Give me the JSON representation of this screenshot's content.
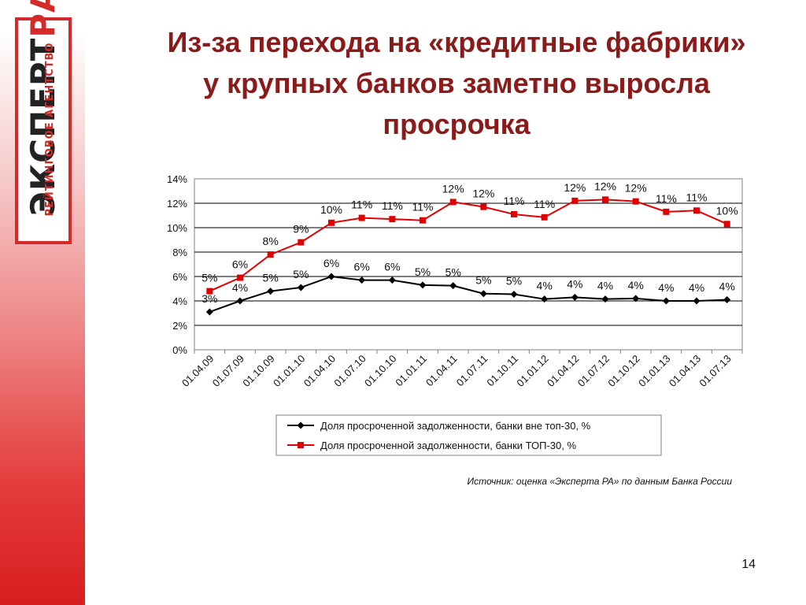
{
  "logo": {
    "main_dark": "ЭКСПЕРТ",
    "main_red": "РА",
    "sub": "РЕЙТИНГОВОЕ АГЕНТСТВО"
  },
  "title": {
    "line1": "Из-за перехода на «кредитные фабрики»",
    "line2": "у крупных банков заметно выросла",
    "line3": "просрочка"
  },
  "colors": {
    "title": "#8b1a1a",
    "series_black": "#000000",
    "series_red": "#e00000",
    "brand_red": "#d42a2a"
  },
  "chart_data": {
    "type": "line",
    "categories": [
      "01.04.09",
      "01.07.09",
      "01.10.09",
      "01.01.10",
      "01.04.10",
      "01.07.10",
      "01.10.10",
      "01.01.11",
      "01.04.11",
      "01.07.11",
      "01.10.11",
      "01.01.12",
      "01.04.12",
      "01.07.12",
      "01.10.12",
      "01.01.13",
      "01.04.13",
      "01.07.13"
    ],
    "ylim": [
      0,
      14
    ],
    "yticks": [
      0,
      2,
      4,
      6,
      8,
      10,
      12,
      14
    ],
    "ytick_labels": [
      "0%",
      "2%",
      "4%",
      "6%",
      "8%",
      "10%",
      "12%",
      "14%"
    ],
    "grid": true,
    "legend_position": "bottom",
    "series": [
      {
        "name": "Доля просроченной задолженности, банки вне топ-30, %",
        "color": "#000000",
        "marker": "diamond",
        "values": [
          3.1,
          4.0,
          4.8,
          5.1,
          6.0,
          5.7,
          5.7,
          5.3,
          5.25,
          4.6,
          4.55,
          4.15,
          4.3,
          4.15,
          4.2,
          4.0,
          4.0,
          4.1
        ],
        "labels": [
          "3%",
          "4%",
          "5%",
          "5%",
          "6%",
          "6%",
          "6%",
          "5%",
          "5%",
          "5%",
          "5%",
          "4%",
          "4%",
          "4%",
          "4%",
          "4%",
          "4%",
          "4%"
        ]
      },
      {
        "name": "Доля просроченной задолженности, банки ТОП-30, %",
        "color": "#e00000",
        "marker": "square",
        "values": [
          4.8,
          5.9,
          7.8,
          8.8,
          10.4,
          10.8,
          10.7,
          10.6,
          12.1,
          11.7,
          11.1,
          10.85,
          12.2,
          12.3,
          12.15,
          11.3,
          11.4,
          10.3
        ],
        "labels": [
          "5%",
          "6%",
          "8%",
          "9%",
          "10%",
          "11%",
          "11%",
          "11%",
          "12%",
          "12%",
          "11%",
          "11%",
          "12%",
          "12%",
          "12%",
          "11%",
          "11%",
          "10%"
        ]
      }
    ]
  },
  "source": "Источник: оценка «Эксперта РА» по данным Банка России",
  "page_number": "14"
}
